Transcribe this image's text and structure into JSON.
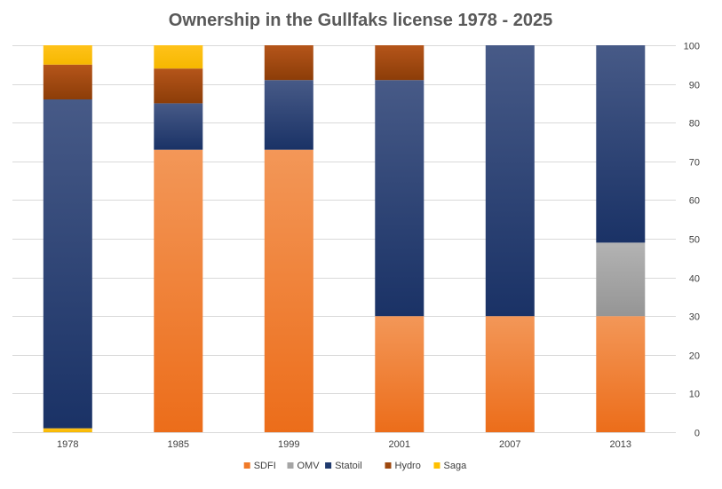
{
  "chart_data": {
    "type": "bar",
    "stacked": true,
    "title": "Ownership in the Gullfaks license 1978 - 2025",
    "xlabel": "",
    "ylabel": "",
    "categories": [
      "1978",
      "1985",
      "1999",
      "2001",
      "2007",
      "2013"
    ],
    "ylim": [
      0,
      100
    ],
    "yticks": [
      0,
      10,
      20,
      30,
      40,
      50,
      60,
      70,
      80,
      90,
      100
    ],
    "y_axis_side": "right",
    "grid": true,
    "legend_position": "bottom",
    "series": [
      {
        "name": "Saga",
        "color": "#ffc000",
        "values": [
          1,
          0,
          0,
          0,
          0,
          0
        ]
      },
      {
        "name": "SDFI",
        "color": "#f07a28",
        "values": [
          0,
          73,
          73,
          30,
          30,
          30
        ]
      },
      {
        "name": "OMV",
        "color": "#a5a5a5",
        "values": [
          0,
          0,
          0,
          0,
          0,
          19
        ]
      },
      {
        "name": "Statoil",
        "color": "#1f3a6e",
        "values": [
          85,
          12,
          18,
          61,
          70,
          51
        ]
      },
      {
        "name": "Hydro",
        "color": "#9e480e",
        "values": [
          9,
          9,
          9,
          9,
          0,
          0
        ]
      },
      {
        "name": "Saga",
        "color": "#ffc000",
        "values": [
          5,
          6,
          0,
          0,
          0,
          0
        ]
      }
    ],
    "legend": [
      "SDFI",
      "OMV",
      "Statoil",
      "Hydro",
      "Saga"
    ],
    "legend_colors": [
      "#f07a28",
      "#a5a5a5",
      "#1f3a6e",
      "#9e480e",
      "#ffc000"
    ]
  }
}
